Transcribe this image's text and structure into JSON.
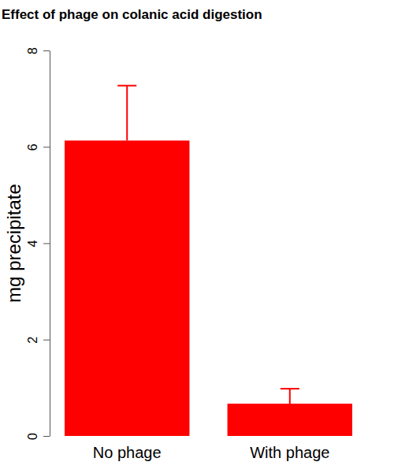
{
  "chart_data": {
    "type": "bar",
    "title": "Effect of phage on colanic acid digestion",
    "y_label": "mg precipitate",
    "categories": [
      "No phage",
      "With phage"
    ],
    "values": [
      6.13,
      0.67
    ],
    "errors": [
      1.14,
      0.31
    ],
    "color": "#ff0000",
    "ylim": [
      0,
      8
    ],
    "yticks": [
      0,
      2,
      4,
      6,
      8
    ],
    "grid": false
  }
}
